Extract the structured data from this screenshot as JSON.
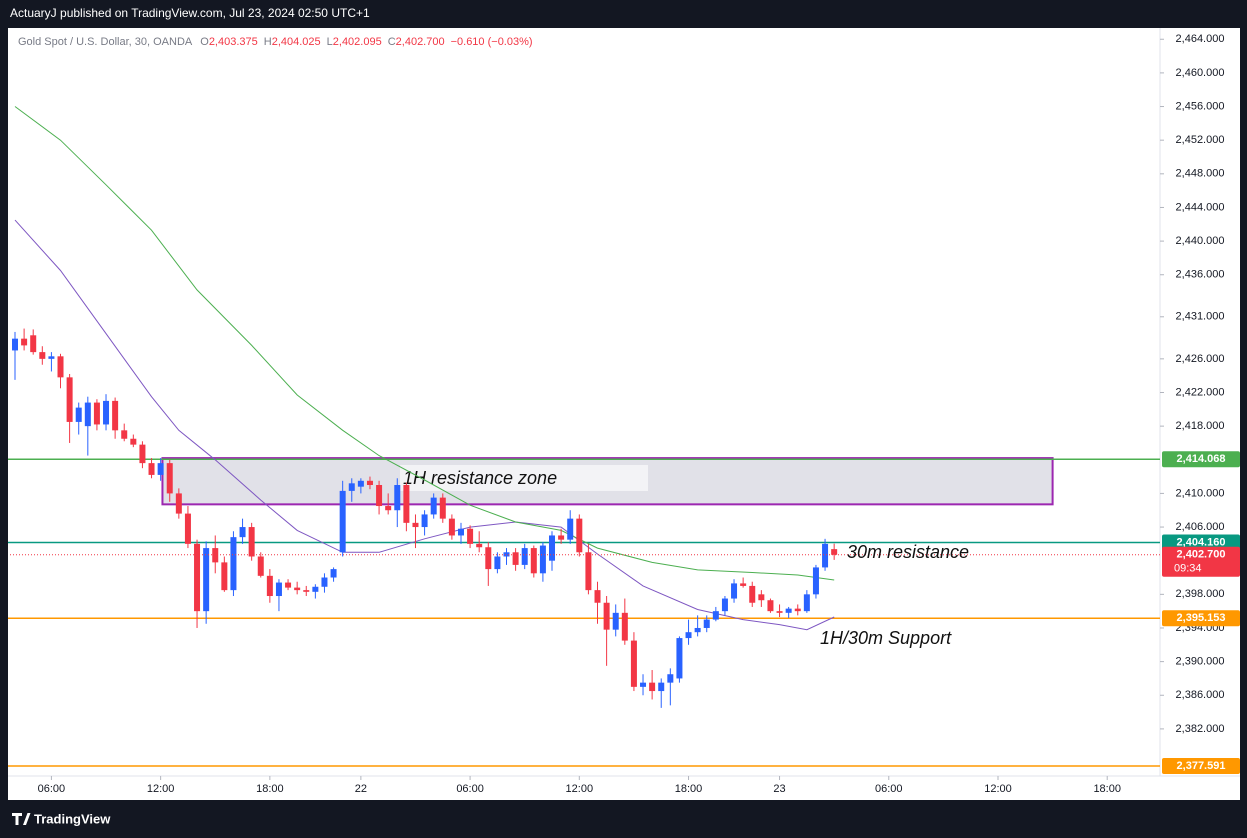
{
  "header": {
    "author": "ActuaryJ published on TradingView.com, Jul 23, 2024 02:50 UTC+1"
  },
  "footer": {
    "brand": "TradingView"
  },
  "chart_data": {
    "type": "candlestick",
    "legend": {
      "symbol": "Gold Spot / U.S. Dollar, 30, OANDA",
      "ohlc_keys": [
        "O",
        "H",
        "L",
        "C"
      ],
      "ohlc_labels": [
        "2,403.375",
        "2,404.025",
        "2,402.095",
        "2,402.700"
      ],
      "change": "−0.610 (−0.03%)"
    },
    "up_color": "#2962ff",
    "down_color": "#f23645",
    "candles": {
      "open": [
        2427.0,
        2428.4,
        2428.8,
        2426.8,
        2426.0,
        2426.3,
        2423.8,
        2418.5,
        2418.0,
        2420.8,
        2418.2,
        2421.0,
        2417.5,
        2416.5,
        2415.8,
        2413.6,
        2412.2,
        2413.6,
        2410.0,
        2407.6,
        2404.0,
        2396.0,
        2403.5,
        2401.8,
        2398.5,
        2404.8,
        2406.0,
        2402.5,
        2400.2,
        2397.8,
        2399.4,
        2398.8,
        2398.5,
        2398.3,
        2398.9,
        2400.0,
        2403.0,
        2410.3,
        2410.8,
        2411.5,
        2411.0,
        2408.5,
        2408.0,
        2411.0,
        2406.5,
        2406.0,
        2407.5,
        2409.5,
        2407.0,
        2405.0,
        2405.8,
        2404.0,
        2403.6,
        2401.0,
        2402.5,
        2403.0,
        2401.5,
        2403.5,
        2400.5,
        2402.0,
        2405.0,
        2404.5,
        2407.0,
        2403.0,
        2398.5,
        2397.0,
        2393.8,
        2395.8,
        2392.5,
        2387.0,
        2387.5,
        2386.5,
        2387.5,
        2388.0,
        2392.8,
        2393.5,
        2394.0,
        2395.0,
        2396.0,
        2397.5,
        2399.3,
        2399.0,
        2398.0,
        2397.3,
        2396.0,
        2395.8,
        2396.3,
        2396.0,
        2398.0,
        2401.2,
        2403.375
      ],
      "high": [
        2429.2,
        2429.6,
        2429.5,
        2427.5,
        2426.8,
        2426.6,
        2424.2,
        2420.8,
        2421.5,
        2421.2,
        2421.8,
        2421.4,
        2418.3,
        2417.0,
        2416.2,
        2414.2,
        2414.2,
        2414.0,
        2410.6,
        2408.5,
        2404.5,
        2404.3,
        2405.0,
        2402.5,
        2405.5,
        2407.0,
        2406.5,
        2403.0,
        2401.0,
        2399.8,
        2399.8,
        2399.5,
        2399.0,
        2399.2,
        2400.5,
        2401.2,
        2411.5,
        2411.8,
        2411.8,
        2412.0,
        2411.5,
        2410.0,
        2411.8,
        2411.3,
        2407.5,
        2408.0,
        2410.0,
        2410.0,
        2407.5,
        2406.5,
        2406.2,
        2405.5,
        2404.2,
        2403.0,
        2403.5,
        2403.5,
        2404.0,
        2403.8,
        2404.2,
        2405.5,
        2405.8,
        2408.0,
        2407.5,
        2404.0,
        2399.5,
        2397.8,
        2396.8,
        2397.5,
        2393.5,
        2388.5,
        2389.0,
        2388.0,
        2389.2,
        2393.0,
        2395.0,
        2395.5,
        2395.5,
        2396.5,
        2397.8,
        2399.8,
        2400.0,
        2399.5,
        2398.5,
        2397.5,
        2396.8,
        2396.5,
        2396.8,
        2398.5,
        2401.5,
        2404.6,
        2404.025
      ],
      "low": [
        2423.5,
        2427.0,
        2426.5,
        2425.3,
        2424.5,
        2422.5,
        2416.0,
        2417.0,
        2414.5,
        2417.5,
        2417.5,
        2416.5,
        2416.2,
        2415.5,
        2413.0,
        2411.8,
        2411.5,
        2409.0,
        2407.0,
        2403.5,
        2394.0,
        2394.5,
        2400.5,
        2398.3,
        2397.8,
        2404.0,
        2402.0,
        2400.0,
        2397.0,
        2396.0,
        2398.5,
        2398.0,
        2397.8,
        2397.5,
        2398.2,
        2399.5,
        2402.5,
        2409.0,
        2410.0,
        2410.5,
        2407.5,
        2407.5,
        2406.0,
        2405.5,
        2403.5,
        2405.0,
        2407.0,
        2406.5,
        2404.5,
        2404.0,
        2403.5,
        2403.0,
        2399.0,
        2400.5,
        2401.5,
        2400.8,
        2401.0,
        2400.0,
        2399.5,
        2400.8,
        2404.0,
        2404.0,
        2402.5,
        2398.0,
        2394.5,
        2389.5,
        2393.0,
        2392.0,
        2386.5,
        2386.0,
        2385.5,
        2384.5,
        2384.8,
        2387.5,
        2392.0,
        2393.0,
        2393.5,
        2394.8,
        2395.5,
        2397.0,
        2398.8,
        2396.5,
        2396.5,
        2395.8,
        2395.3,
        2395.2,
        2395.5,
        2395.8,
        2397.5,
        2400.8,
        2402.095
      ],
      "close": [
        2428.4,
        2427.6,
        2426.8,
        2426.0,
        2426.3,
        2423.8,
        2418.5,
        2420.2,
        2420.8,
        2418.2,
        2421.0,
        2417.5,
        2416.5,
        2415.8,
        2413.6,
        2412.2,
        2413.6,
        2410.0,
        2407.6,
        2404.0,
        2396.0,
        2403.5,
        2401.8,
        2398.5,
        2404.8,
        2406.0,
        2402.5,
        2400.2,
        2397.8,
        2399.4,
        2398.8,
        2398.5,
        2398.3,
        2398.9,
        2400.0,
        2401.0,
        2410.3,
        2411.2,
        2411.5,
        2411.0,
        2408.5,
        2408.0,
        2411.0,
        2406.5,
        2406.0,
        2407.5,
        2409.5,
        2407.0,
        2405.0,
        2405.8,
        2404.0,
        2403.6,
        2401.0,
        2402.5,
        2403.0,
        2401.5,
        2403.5,
        2400.5,
        2403.8,
        2405.0,
        2404.5,
        2407.0,
        2403.0,
        2398.5,
        2397.0,
        2393.8,
        2395.8,
        2392.5,
        2387.0,
        2387.5,
        2386.5,
        2387.5,
        2388.5,
        2392.8,
        2393.5,
        2394.0,
        2395.0,
        2396.0,
        2397.5,
        2399.3,
        2399.0,
        2397.0,
        2397.3,
        2396.0,
        2395.8,
        2396.3,
        2396.0,
        2398.0,
        2401.2,
        2404.0,
        2402.7
      ]
    },
    "series": [
      {
        "color": "#7e57c2",
        "x": [
          0,
          5,
          10,
          15,
          18,
          22,
          27,
          31,
          36,
          40,
          45,
          50,
          55,
          60,
          64,
          69,
          75,
          80,
          84,
          87,
          90
        ],
        "values": [
          2442.5,
          2436.5,
          2429.0,
          2421.5,
          2417.5,
          2414.0,
          2409.2,
          2405.6,
          2403.0,
          2403.0,
          2404.6,
          2406.0,
          2406.6,
          2406.0,
          2402.8,
          2399.0,
          2396.2,
          2395.0,
          2394.4,
          2393.8,
          2395.3
        ]
      },
      {
        "color": "#4caf50",
        "x": [
          0,
          5,
          10,
          15,
          20,
          26,
          31,
          36,
          40,
          45,
          50,
          55,
          60,
          64,
          70,
          75,
          81,
          86,
          90
        ],
        "values": [
          2456.0,
          2452.0,
          2446.7,
          2441.3,
          2434.2,
          2427.6,
          2421.7,
          2417.5,
          2414.5,
          2411.6,
          2408.6,
          2406.6,
          2405.6,
          2403.5,
          2401.8,
          2400.9,
          2400.6,
          2400.3,
          2399.7
        ]
      }
    ],
    "zone": {
      "label": "1H resistance zone",
      "x": [
        16.2,
        114
      ],
      "y": [
        2408.7,
        2414.2
      ],
      "color": "#9c27b0"
    },
    "annotations": [
      "30m resistance",
      "1H/30m Support"
    ],
    "levels": [
      {
        "value": 2414.068,
        "label": "2,414.068",
        "color": "#4caf50"
      },
      {
        "value": 2404.16,
        "label": "2,404.160",
        "color": "#089981"
      },
      {
        "value": 2395.153,
        "label": "2,395.153",
        "color": "#ff9800"
      },
      {
        "value": 2377.591,
        "label": "2,377.591",
        "color": "#ff9800"
      }
    ],
    "last_price": {
      "value": 2402.7,
      "label": "2,402.700",
      "countdown": "09:34",
      "color": "#f23645"
    },
    "xlim": [
      -0.55,
      125.8
    ],
    "ylim": [
      2376.4,
      2465.1
    ],
    "xticks": [
      {
        "value": 4,
        "label": "06:00"
      },
      {
        "value": 16,
        "label": "12:00"
      },
      {
        "value": 28,
        "label": "18:00"
      },
      {
        "value": 38,
        "label": "22"
      },
      {
        "value": 50,
        "label": "06:00"
      },
      {
        "value": 62,
        "label": "12:00"
      },
      {
        "value": 74,
        "label": "18:00"
      },
      {
        "value": 84,
        "label": "23"
      },
      {
        "value": 96,
        "label": "06:00"
      },
      {
        "value": 108,
        "label": "12:00"
      },
      {
        "value": 120,
        "label": "18:00"
      }
    ],
    "yticks": [
      {
        "value": 2464,
        "label": "2,464.000"
      },
      {
        "value": 2460,
        "label": "2,460.000"
      },
      {
        "value": 2456,
        "label": "2,456.000"
      },
      {
        "value": 2452,
        "label": "2,452.000"
      },
      {
        "value": 2448,
        "label": "2,448.000"
      },
      {
        "value": 2444,
        "label": "2,444.000"
      },
      {
        "value": 2440,
        "label": "2,440.000"
      },
      {
        "value": 2436,
        "label": "2,436.000"
      },
      {
        "value": 2431,
        "label": "2,431.000"
      },
      {
        "value": 2426,
        "label": "2,426.000"
      },
      {
        "value": 2422,
        "label": "2,422.000"
      },
      {
        "value": 2418,
        "label": "2,418.000"
      },
      {
        "value": 2410,
        "label": "2,410.000"
      },
      {
        "value": 2406,
        "label": "2,406.000"
      },
      {
        "value": 2398,
        "label": "2,398.000"
      },
      {
        "value": 2394,
        "label": "2,394.000"
      },
      {
        "value": 2390,
        "label": "2,390.000"
      },
      {
        "value": 2386,
        "label": "2,386.000"
      },
      {
        "value": 2382,
        "label": "2,382.000"
      }
    ]
  }
}
